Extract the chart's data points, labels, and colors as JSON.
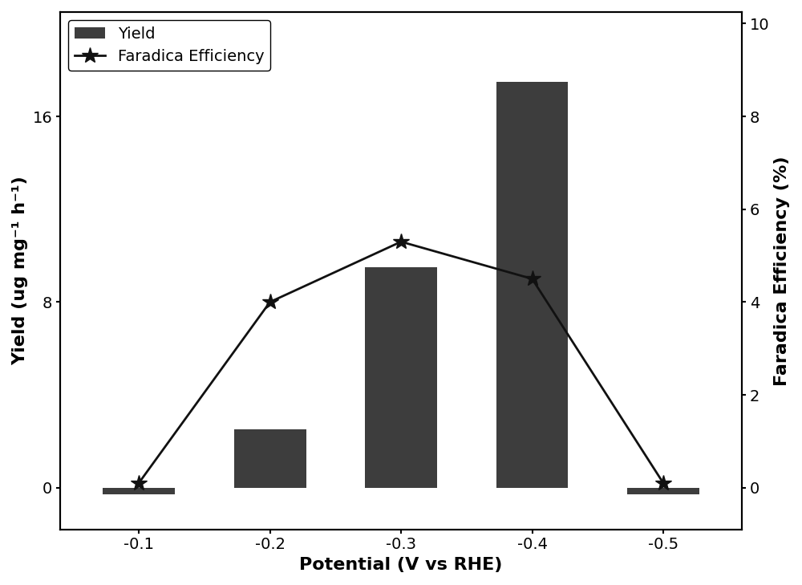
{
  "x_positions": [
    0,
    1,
    2,
    3,
    4
  ],
  "x_labels": [
    "-0.1",
    "-0.2",
    "-0.3",
    "-0.4",
    "-0.5"
  ],
  "bar_values": [
    -0.3,
    2.5,
    9.5,
    17.5,
    -0.3
  ],
  "fe_values": [
    0.1,
    4.0,
    5.3,
    4.5,
    0.1
  ],
  "bar_color": "#3d3d3d",
  "line_color": "#111111",
  "bar_label": "Yield",
  "line_label": "Faradica Efficiency",
  "xlabel": "Potential (V vs RHE)",
  "ylabel_left": "Yield (ug mg⁻¹ h⁻¹)",
  "ylabel_right": "Faradica Efficiency (%)",
  "ylim_left": [
    -1.8,
    20.5
  ],
  "ylim_right": [
    -0.9,
    10.25
  ],
  "yticks_left": [
    0,
    8,
    16
  ],
  "yticks_right": [
    0,
    2,
    4,
    6,
    8,
    10
  ],
  "bar_width": 0.55,
  "label_fontsize": 16,
  "tick_fontsize": 14,
  "legend_fontsize": 14,
  "spine_linewidth": 1.5
}
